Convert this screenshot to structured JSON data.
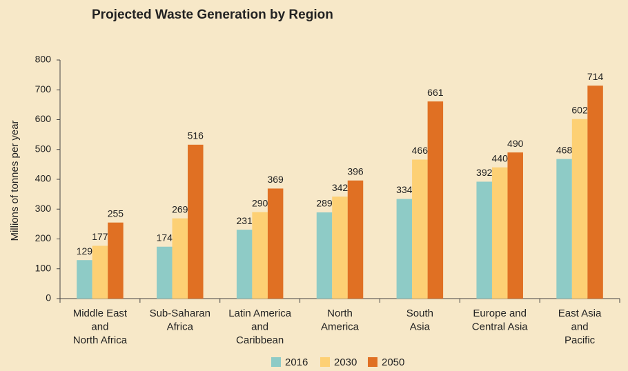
{
  "chart_data": {
    "type": "bar",
    "title": "Projected Waste Generation by Region",
    "y_label": "Millions of tonnes per year",
    "categories": [
      [
        "Middle East",
        "and",
        "North Africa"
      ],
      [
        "Sub-Saharan",
        "Africa"
      ],
      [
        "Latin America",
        "and",
        "Caribbean"
      ],
      [
        "North",
        "America"
      ],
      [
        "South",
        "Asia"
      ],
      [
        "Europe and",
        "Central Asia"
      ],
      [
        "East Asia",
        "and",
        "Pacific"
      ]
    ],
    "series": [
      {
        "name": "2016",
        "color": "#8ecbc6",
        "values": [
          129,
          174,
          231,
          289,
          334,
          392,
          468
        ]
      },
      {
        "name": "2030",
        "color": "#fdd074",
        "values": [
          177,
          269,
          290,
          342,
          466,
          440,
          602
        ]
      },
      {
        "name": "2050",
        "color": "#e07023",
        "values": [
          255,
          516,
          369,
          396,
          661,
          490,
          714
        ]
      }
    ],
    "ylim": [
      0,
      800
    ],
    "yticks": [
      0,
      100,
      200,
      300,
      400,
      500,
      600,
      700,
      800
    ],
    "grid": false,
    "legend": "bottom"
  }
}
